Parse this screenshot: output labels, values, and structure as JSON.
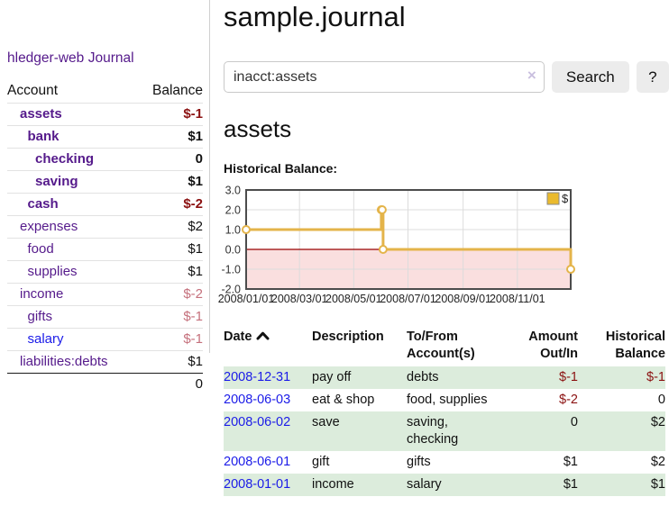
{
  "brand": {
    "label": "hledger-web"
  },
  "nav": {
    "journal_label": "Journal"
  },
  "sidebar": {
    "account_header": "Account",
    "balance_header": "Balance",
    "accounts": [
      {
        "name": "assets",
        "indent": 0,
        "bold": true,
        "balance": "$-1",
        "balance_style": "neg"
      },
      {
        "name": "bank",
        "indent": 1,
        "bold": true,
        "balance": "$1",
        "balance_style": "pos"
      },
      {
        "name": "checking",
        "indent": 2,
        "bold": true,
        "balance": "0",
        "balance_style": "pos"
      },
      {
        "name": "saving",
        "indent": 2,
        "bold": true,
        "balance": "$1",
        "balance_style": "pos"
      },
      {
        "name": "cash",
        "indent": 1,
        "bold": true,
        "balance": "$-2",
        "balance_style": "neg"
      },
      {
        "name": "expenses",
        "indent": 0,
        "bold": false,
        "balance": "$2",
        "balance_style": "pos"
      },
      {
        "name": "food",
        "indent": 1,
        "bold": false,
        "balance": "$1",
        "balance_style": "pos"
      },
      {
        "name": "supplies",
        "indent": 1,
        "bold": false,
        "balance": "$1",
        "balance_style": "pos"
      },
      {
        "name": "income",
        "indent": 0,
        "bold": false,
        "balance": "$-2",
        "balance_style": "neg-dim"
      },
      {
        "name": "gifts",
        "indent": 1,
        "bold": false,
        "balance": "$-1",
        "balance_style": "neg-dim"
      },
      {
        "name": "salary",
        "indent": 1,
        "bold": false,
        "balance": "$-1",
        "balance_style": "neg-dim",
        "link_color": "blue"
      },
      {
        "name": "liabilities:debts",
        "indent": 0,
        "bold": false,
        "balance": "$1",
        "balance_style": "pos"
      }
    ],
    "total": "0"
  },
  "main": {
    "title": "sample.journal",
    "account_heading": "assets",
    "chart_label": "Historical Balance:"
  },
  "search": {
    "value": "inacct:assets",
    "clear_icon": "×",
    "button_label": "Search",
    "help_label": "?"
  },
  "chart_data": {
    "type": "line",
    "step": true,
    "title": "Historical Balance",
    "x_range": [
      "2008-01-01",
      "2008-12-31"
    ],
    "ylim": [
      -2,
      3
    ],
    "ytick_values": [
      3,
      2,
      1,
      0,
      -1,
      -2
    ],
    "yticks": [
      "3.0",
      "2.0",
      "1.0",
      "0.0",
      "-1.0",
      "-2.0"
    ],
    "xticks": [
      {
        "label": "2008/01/01",
        "date": "2008-01-01"
      },
      {
        "label": "2008/03/01",
        "date": "2008-03-01"
      },
      {
        "label": "2008/05/01",
        "date": "2008-05-01"
      },
      {
        "label": "2008/07/01",
        "date": "2008-07-01"
      },
      {
        "label": "2008/09/01",
        "date": "2008-09-01"
      },
      {
        "label": "2008/11/01",
        "date": "2008-11-01"
      }
    ],
    "series": [
      {
        "name": "$",
        "color": "#e4b44a",
        "points": [
          {
            "date": "2008-01-01",
            "value": 1
          },
          {
            "date": "2008-06-01",
            "value": 2
          },
          {
            "date": "2008-06-02",
            "value": 2
          },
          {
            "date": "2008-06-03",
            "value": 0
          },
          {
            "date": "2008-12-31",
            "value": -1
          }
        ]
      }
    ],
    "legend": {
      "label": "$",
      "position": "top-right",
      "swatch_color": "#eaba2d"
    },
    "grid": true,
    "negative_region": true,
    "colors": {
      "grid": "#dcdcdc",
      "border": "#4c4c4c",
      "zero_line": "#990000",
      "negative_region": "#fadfdf",
      "tick_text": "#333333"
    }
  },
  "register": {
    "headers": {
      "date": "Date",
      "description": "Description",
      "accounts": "To/From Account(s)",
      "amount": "Amount Out/In",
      "balance": "Historical Balance"
    },
    "sort": {
      "column": "date",
      "direction": "ascending"
    },
    "rows": [
      {
        "date": "2008-12-31",
        "description": "pay off",
        "accounts": "debts",
        "amount": "$-1",
        "amount_neg": true,
        "balance": "$-1",
        "balance_neg": true
      },
      {
        "date": "2008-06-03",
        "description": "eat & shop",
        "accounts": "food, supplies",
        "amount": "$-2",
        "amount_neg": true,
        "balance": "0",
        "balance_neg": false
      },
      {
        "date": "2008-06-02",
        "description": "save",
        "accounts": "saving, checking",
        "amount": "0",
        "amount_neg": false,
        "balance": "$2",
        "balance_neg": false
      },
      {
        "date": "2008-06-01",
        "description": "gift",
        "accounts": "gifts",
        "amount": "$1",
        "amount_neg": false,
        "balance": "$2",
        "balance_neg": false
      },
      {
        "date": "2008-01-01",
        "description": "income",
        "accounts": "salary",
        "amount": "$1",
        "amount_neg": false,
        "balance": "$1",
        "balance_neg": false
      }
    ]
  }
}
